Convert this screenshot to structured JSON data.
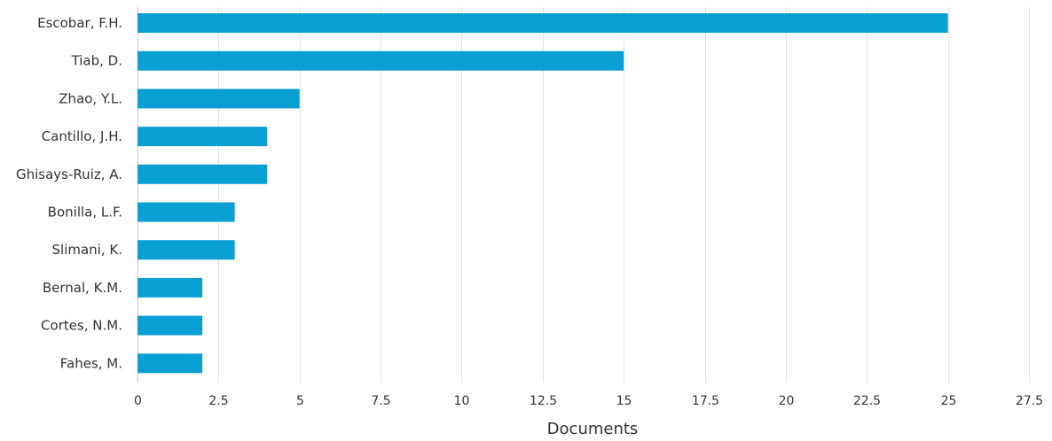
{
  "chart_data": {
    "type": "bar",
    "orientation": "horizontal",
    "categories": [
      "Escobar, F.H.",
      "Tiab, D.",
      "Zhao, Y.L.",
      "Cantillo, J.H.",
      "Ghisays-Ruiz, A.",
      "Bonilla, L.F.",
      "Slimani, K.",
      "Bernal, K.M.",
      "Cortes, N.M.",
      "Fahes, M."
    ],
    "values": [
      25,
      15,
      5,
      4,
      4,
      3,
      3,
      2,
      2,
      2
    ],
    "xlabel": "Documents",
    "ylabel": "",
    "xlim": [
      0,
      27.5
    ],
    "xticks": [
      0,
      2.5,
      5,
      7.5,
      10,
      12.5,
      15,
      17.5,
      20,
      22.5,
      25,
      27.5
    ],
    "xtick_labels": [
      "0",
      "2.5",
      "5",
      "7.5",
      "10",
      "12.5",
      "15",
      "17.5",
      "20",
      "22.5",
      "25",
      "27.5"
    ],
    "grid": true,
    "legend": "none",
    "bar_color": "#0a9fd2"
  }
}
